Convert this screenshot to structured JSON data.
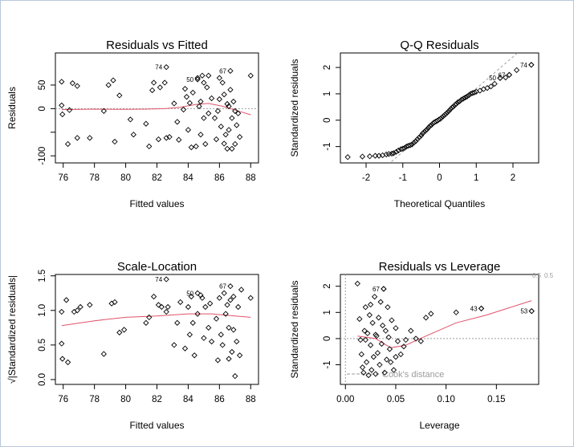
{
  "colors": {
    "smooth": "#df536b",
    "reference": "#9e9e9e",
    "points": "#000000",
    "cook": "#9c9c9c"
  },
  "chart_data": [
    {
      "type": "scatter",
      "title": "Residuals vs Fitted",
      "xlabel": "Fitted values",
      "ylabel": "Residuals",
      "xlim": [
        75.5,
        88.5
      ],
      "ylim": [
        -115,
        118
      ],
      "xticks": [
        76,
        78,
        80,
        82,
        84,
        86,
        88
      ],
      "yticks": [
        -100,
        -50,
        0,
        50
      ],
      "ytick_labels": [
        "-100",
        "",
        "0",
        "50"
      ],
      "reference_line": 0,
      "labeled_points": [
        {
          "label": "74",
          "x": 82.6,
          "y": 88
        },
        {
          "label": "50",
          "x": 84.6,
          "y": 62
        },
        {
          "label": "67",
          "x": 86.7,
          "y": 80
        }
      ],
      "points": [
        [
          75.9,
          57
        ],
        [
          75.9,
          7
        ],
        [
          75.95,
          -12
        ],
        [
          76.3,
          -75
        ],
        [
          76.4,
          -3
        ],
        [
          76.6,
          54
        ],
        [
          76.9,
          48
        ],
        [
          76.9,
          -62
        ],
        [
          77.7,
          -62
        ],
        [
          78.6,
          -5
        ],
        [
          78.9,
          50
        ],
        [
          79.2,
          60
        ],
        [
          79.3,
          -70
        ],
        [
          79.6,
          28
        ],
        [
          80.3,
          -23
        ],
        [
          80.5,
          -55
        ],
        [
          81.3,
          -32
        ],
        [
          81.5,
          -80
        ],
        [
          81.7,
          39
        ],
        [
          81.8,
          55
        ],
        [
          82.1,
          -65
        ],
        [
          82.2,
          45
        ],
        [
          82.5,
          55
        ],
        [
          82.6,
          -62
        ],
        [
          82.8,
          -60
        ],
        [
          83.1,
          11
        ],
        [
          83.3,
          -28
        ],
        [
          83.4,
          -66
        ],
        [
          83.7,
          -2
        ],
        [
          83.8,
          42
        ],
        [
          83.9,
          25
        ],
        [
          84.0,
          -45
        ],
        [
          84.1,
          12
        ],
        [
          84.2,
          -82
        ],
        [
          84.3,
          34
        ],
        [
          84.5,
          -80
        ],
        [
          84.6,
          65
        ],
        [
          84.7,
          5
        ],
        [
          84.8,
          -55
        ],
        [
          84.8,
          15
        ],
        [
          84.9,
          70
        ],
        [
          85.0,
          -20
        ],
        [
          85.0,
          55
        ],
        [
          85.1,
          -75
        ],
        [
          85.2,
          45
        ],
        [
          85.3,
          -10
        ],
        [
          85.3,
          70
        ],
        [
          85.5,
          22
        ],
        [
          85.7,
          -20
        ],
        [
          85.8,
          -65
        ],
        [
          85.9,
          -5
        ],
        [
          86.0,
          65
        ],
        [
          86.0,
          20
        ],
        [
          86.1,
          -38
        ],
        [
          86.2,
          55
        ],
        [
          86.3,
          30
        ],
        [
          86.3,
          -74
        ],
        [
          86.4,
          -55
        ],
        [
          86.5,
          10
        ],
        [
          86.5,
          -85
        ],
        [
          86.6,
          5
        ],
        [
          86.6,
          -45
        ],
        [
          86.7,
          40
        ],
        [
          86.8,
          -20
        ],
        [
          86.8,
          -85
        ],
        [
          86.9,
          15
        ],
        [
          87.0,
          -5
        ],
        [
          87.0,
          -75
        ],
        [
          87.1,
          -35
        ],
        [
          87.2,
          -10
        ],
        [
          87.3,
          -60
        ],
        [
          88.0,
          70
        ]
      ],
      "smooth": [
        [
          75.9,
          -2
        ],
        [
          78,
          -1
        ],
        [
          80,
          -1.5
        ],
        [
          81.2,
          -1
        ],
        [
          82.5,
          0
        ],
        [
          83.5,
          3
        ],
        [
          84.5,
          9
        ],
        [
          85.3,
          11
        ],
        [
          86.2,
          5
        ],
        [
          87.2,
          -5
        ],
        [
          88,
          -13
        ]
      ]
    },
    {
      "type": "scatter",
      "title": "Q-Q Residuals",
      "xlabel": "Theoretical Quantiles",
      "ylabel": "Standardized residuals",
      "xlim": [
        -2.7,
        2.7
      ],
      "ylim": [
        -1.62,
        2.55
      ],
      "xticks": [
        -2,
        -1,
        0,
        1,
        2
      ],
      "yticks": [
        -1,
        0,
        1,
        2
      ],
      "reference_line": {
        "slope": 1.2,
        "intercept": 0
      },
      "labeled_points": [
        {
          "label": "74",
          "x": 2.5,
          "y": 2.1
        },
        {
          "label": "67",
          "x": 1.9,
          "y": 1.72
        },
        {
          "label": "50",
          "x": 1.65,
          "y": 1.6
        }
      ],
      "points": [
        [
          -2.5,
          -1.4
        ],
        [
          -2.1,
          -1.38
        ],
        [
          -1.9,
          -1.37
        ],
        [
          -1.75,
          -1.35
        ],
        [
          -1.65,
          -1.35
        ],
        [
          -1.55,
          -1.33
        ],
        [
          -1.45,
          -1.3
        ],
        [
          -1.38,
          -1.28
        ],
        [
          -1.3,
          -1.27
        ],
        [
          -1.25,
          -1.25
        ],
        [
          -1.18,
          -1.2
        ],
        [
          -1.12,
          -1.15
        ],
        [
          -1.05,
          -1.1
        ],
        [
          -1.0,
          -1.08
        ],
        [
          -0.95,
          -1.05
        ],
        [
          -0.9,
          -1.0
        ],
        [
          -0.85,
          -0.97
        ],
        [
          -0.8,
          -0.95
        ],
        [
          -0.75,
          -0.92
        ],
        [
          -0.7,
          -0.85
        ],
        [
          -0.65,
          -0.8
        ],
        [
          -0.6,
          -0.72
        ],
        [
          -0.55,
          -0.65
        ],
        [
          -0.5,
          -0.58
        ],
        [
          -0.46,
          -0.5
        ],
        [
          -0.42,
          -0.45
        ],
        [
          -0.38,
          -0.4
        ],
        [
          -0.34,
          -0.35
        ],
        [
          -0.3,
          -0.28
        ],
        [
          -0.26,
          -0.22
        ],
        [
          -0.22,
          -0.18
        ],
        [
          -0.18,
          -0.12
        ],
        [
          -0.14,
          -0.08
        ],
        [
          -0.1,
          -0.05
        ],
        [
          -0.06,
          -0.02
        ],
        [
          -0.02,
          0.02
        ],
        [
          0.02,
          0.05
        ],
        [
          0.06,
          0.1
        ],
        [
          0.1,
          0.15
        ],
        [
          0.14,
          0.2
        ],
        [
          0.18,
          0.25
        ],
        [
          0.22,
          0.3
        ],
        [
          0.26,
          0.36
        ],
        [
          0.3,
          0.42
        ],
        [
          0.34,
          0.48
        ],
        [
          0.38,
          0.52
        ],
        [
          0.42,
          0.58
        ],
        [
          0.46,
          0.62
        ],
        [
          0.5,
          0.68
        ],
        [
          0.55,
          0.72
        ],
        [
          0.6,
          0.78
        ],
        [
          0.65,
          0.82
        ],
        [
          0.7,
          0.86
        ],
        [
          0.75,
          0.9
        ],
        [
          0.8,
          0.95
        ],
        [
          0.85,
          1.0
        ],
        [
          0.9,
          1.03
        ],
        [
          0.95,
          1.05
        ],
        [
          1.0,
          1.08
        ],
        [
          1.1,
          1.12
        ],
        [
          1.2,
          1.18
        ],
        [
          1.3,
          1.22
        ],
        [
          1.4,
          1.28
        ],
        [
          1.5,
          1.38
        ],
        [
          1.65,
          1.6
        ],
        [
          1.8,
          1.62
        ],
        [
          1.9,
          1.72
        ],
        [
          2.1,
          1.9
        ],
        [
          2.5,
          2.1
        ]
      ]
    },
    {
      "type": "scatter",
      "title": "Scale-Location",
      "xlabel": "Fitted values",
      "ylabel": "√|Standardized residuals|",
      "xlim": [
        75.5,
        88.5
      ],
      "ylim": [
        -0.07,
        1.52
      ],
      "xticks": [
        76,
        78,
        80,
        82,
        84,
        86,
        88
      ],
      "yticks": [
        0.0,
        0.5,
        1.0,
        1.5
      ],
      "ytick_labels": [
        "0.0",
        "0.5",
        "1.0",
        "1.5"
      ],
      "labeled_points": [
        {
          "label": "74",
          "x": 82.6,
          "y": 1.45
        },
        {
          "label": "50",
          "x": 84.6,
          "y": 1.25
        },
        {
          "label": "67",
          "x": 86.7,
          "y": 1.35
        }
      ],
      "points": [
        [
          75.9,
          0.98
        ],
        [
          75.9,
          0.52
        ],
        [
          75.95,
          0.3
        ],
        [
          76.2,
          1.15
        ],
        [
          76.3,
          0.25
        ],
        [
          76.7,
          0.98
        ],
        [
          76.9,
          1.0
        ],
        [
          77.1,
          1.05
        ],
        [
          77.7,
          1.08
        ],
        [
          78.6,
          0.37
        ],
        [
          79.1,
          1.1
        ],
        [
          79.3,
          1.12
        ],
        [
          79.6,
          0.68
        ],
        [
          79.9,
          0.72
        ],
        [
          81.3,
          0.82
        ],
        [
          81.5,
          0.9
        ],
        [
          81.8,
          1.2
        ],
        [
          82.1,
          1.08
        ],
        [
          82.3,
          1.05
        ],
        [
          82.6,
          0.98
        ],
        [
          82.7,
          1.05
        ],
        [
          83.1,
          0.5
        ],
        [
          83.3,
          0.82
        ],
        [
          83.5,
          1.12
        ],
        [
          83.8,
          0.45
        ],
        [
          84.0,
          1.05
        ],
        [
          84.1,
          0.65
        ],
        [
          84.2,
          1.2
        ],
        [
          84.3,
          0.82
        ],
        [
          84.4,
          0.35
        ],
        [
          84.6,
          0.95
        ],
        [
          84.8,
          1.22
        ],
        [
          84.9,
          1.18
        ],
        [
          85.0,
          0.6
        ],
        [
          85.1,
          1.05
        ],
        [
          85.3,
          0.75
        ],
        [
          85.4,
          1.1
        ],
        [
          85.5,
          0.55
        ],
        [
          85.8,
          0.88
        ],
        [
          85.9,
          0.28
        ],
        [
          86.0,
          1.18
        ],
        [
          86.1,
          0.65
        ],
        [
          86.2,
          0.5
        ],
        [
          86.3,
          1.25
        ],
        [
          86.4,
          0.95
        ],
        [
          86.5,
          1.08
        ],
        [
          86.6,
          0.75
        ],
        [
          86.6,
          0.3
        ],
        [
          86.7,
          1.15
        ],
        [
          86.8,
          0.4
        ],
        [
          86.9,
          1.2
        ],
        [
          86.9,
          0.72
        ],
        [
          87.0,
          0.05
        ],
        [
          87.1,
          0.55
        ],
        [
          87.2,
          1.05
        ],
        [
          87.3,
          0.35
        ],
        [
          87.4,
          1.3
        ],
        [
          88.0,
          1.18
        ]
      ],
      "smooth": [
        [
          75.9,
          0.78
        ],
        [
          78,
          0.85
        ],
        [
          80,
          0.9
        ],
        [
          82,
          0.92
        ],
        [
          84,
          0.95
        ],
        [
          85.5,
          0.95
        ],
        [
          87,
          0.92
        ],
        [
          88,
          0.9
        ]
      ]
    },
    {
      "type": "scatter",
      "title": "Residuals vs Leverage",
      "xlabel": "Leverage",
      "ylabel": "Standardized residuals",
      "xlim": [
        -0.005,
        0.192
      ],
      "ylim": [
        -1.75,
        2.45
      ],
      "xticks": [
        0.0,
        0.05,
        0.1,
        0.15
      ],
      "xtick_labels": [
        "0.00",
        "0.05",
        "0.10",
        "0.15"
      ],
      "yticks": [
        -1,
        0,
        1,
        2
      ],
      "reference_line": 0,
      "cook_label": "Cook's distance",
      "cook_contour_label": "0.5",
      "labeled_points": [
        {
          "label": "67",
          "x": 0.038,
          "y": 1.9
        },
        {
          "label": "43",
          "x": 0.135,
          "y": 1.15
        },
        {
          "label": "53",
          "x": 0.185,
          "y": 1.05
        }
      ],
      "points": [
        [
          0.012,
          2.1
        ],
        [
          0.014,
          0.75
        ],
        [
          0.015,
          -0.05
        ],
        [
          0.016,
          -0.6
        ],
        [
          0.017,
          -1.1
        ],
        [
          0.018,
          -1.3
        ],
        [
          0.019,
          0.3
        ],
        [
          0.02,
          1.2
        ],
        [
          0.021,
          -0.9
        ],
        [
          0.022,
          0.2
        ],
        [
          0.023,
          -1.4
        ],
        [
          0.024,
          0.9
        ],
        [
          0.025,
          1.3
        ],
        [
          0.025,
          -0.25
        ],
        [
          0.026,
          -1.2
        ],
        [
          0.027,
          0.6
        ],
        [
          0.028,
          -0.7
        ],
        [
          0.029,
          1.6
        ],
        [
          0.03,
          -1.35
        ],
        [
          0.031,
          0.1
        ],
        [
          0.032,
          -0.55
        ],
        [
          0.033,
          0.8
        ],
        [
          0.034,
          -1.0
        ],
        [
          0.035,
          1.4
        ],
        [
          0.036,
          -0.2
        ],
        [
          0.037,
          0.5
        ],
        [
          0.038,
          1.9
        ],
        [
          0.039,
          -1.3
        ],
        [
          0.04,
          0.3
        ],
        [
          0.041,
          -0.8
        ],
        [
          0.042,
          1.2
        ],
        [
          0.043,
          0.05
        ],
        [
          0.044,
          -0.4
        ],
        [
          0.046,
          0.7
        ],
        [
          0.048,
          -1.2
        ],
        [
          0.05,
          0.4
        ],
        [
          0.052,
          -0.1
        ],
        [
          0.055,
          -0.6
        ],
        [
          0.058,
          -0.3
        ],
        [
          0.06,
          -0.05
        ],
        [
          0.065,
          0.3
        ],
        [
          0.07,
          0.0
        ],
        [
          0.075,
          -0.1
        ],
        [
          0.08,
          0.8
        ],
        [
          0.085,
          0.95
        ],
        [
          0.11,
          1.0
        ],
        [
          0.135,
          1.15
        ],
        [
          0.185,
          1.05
        ],
        [
          0.02,
          -0.05
        ],
        [
          0.03,
          0.15
        ],
        [
          0.045,
          -0.9
        ],
        [
          0.05,
          -0.7
        ]
      ],
      "smooth": [
        [
          0.012,
          0.1
        ],
        [
          0.03,
          0.0
        ],
        [
          0.045,
          -0.35
        ],
        [
          0.06,
          -0.25
        ],
        [
          0.08,
          0.1
        ],
        [
          0.11,
          0.6
        ],
        [
          0.14,
          0.9
        ],
        [
          0.185,
          1.45
        ]
      ]
    }
  ]
}
